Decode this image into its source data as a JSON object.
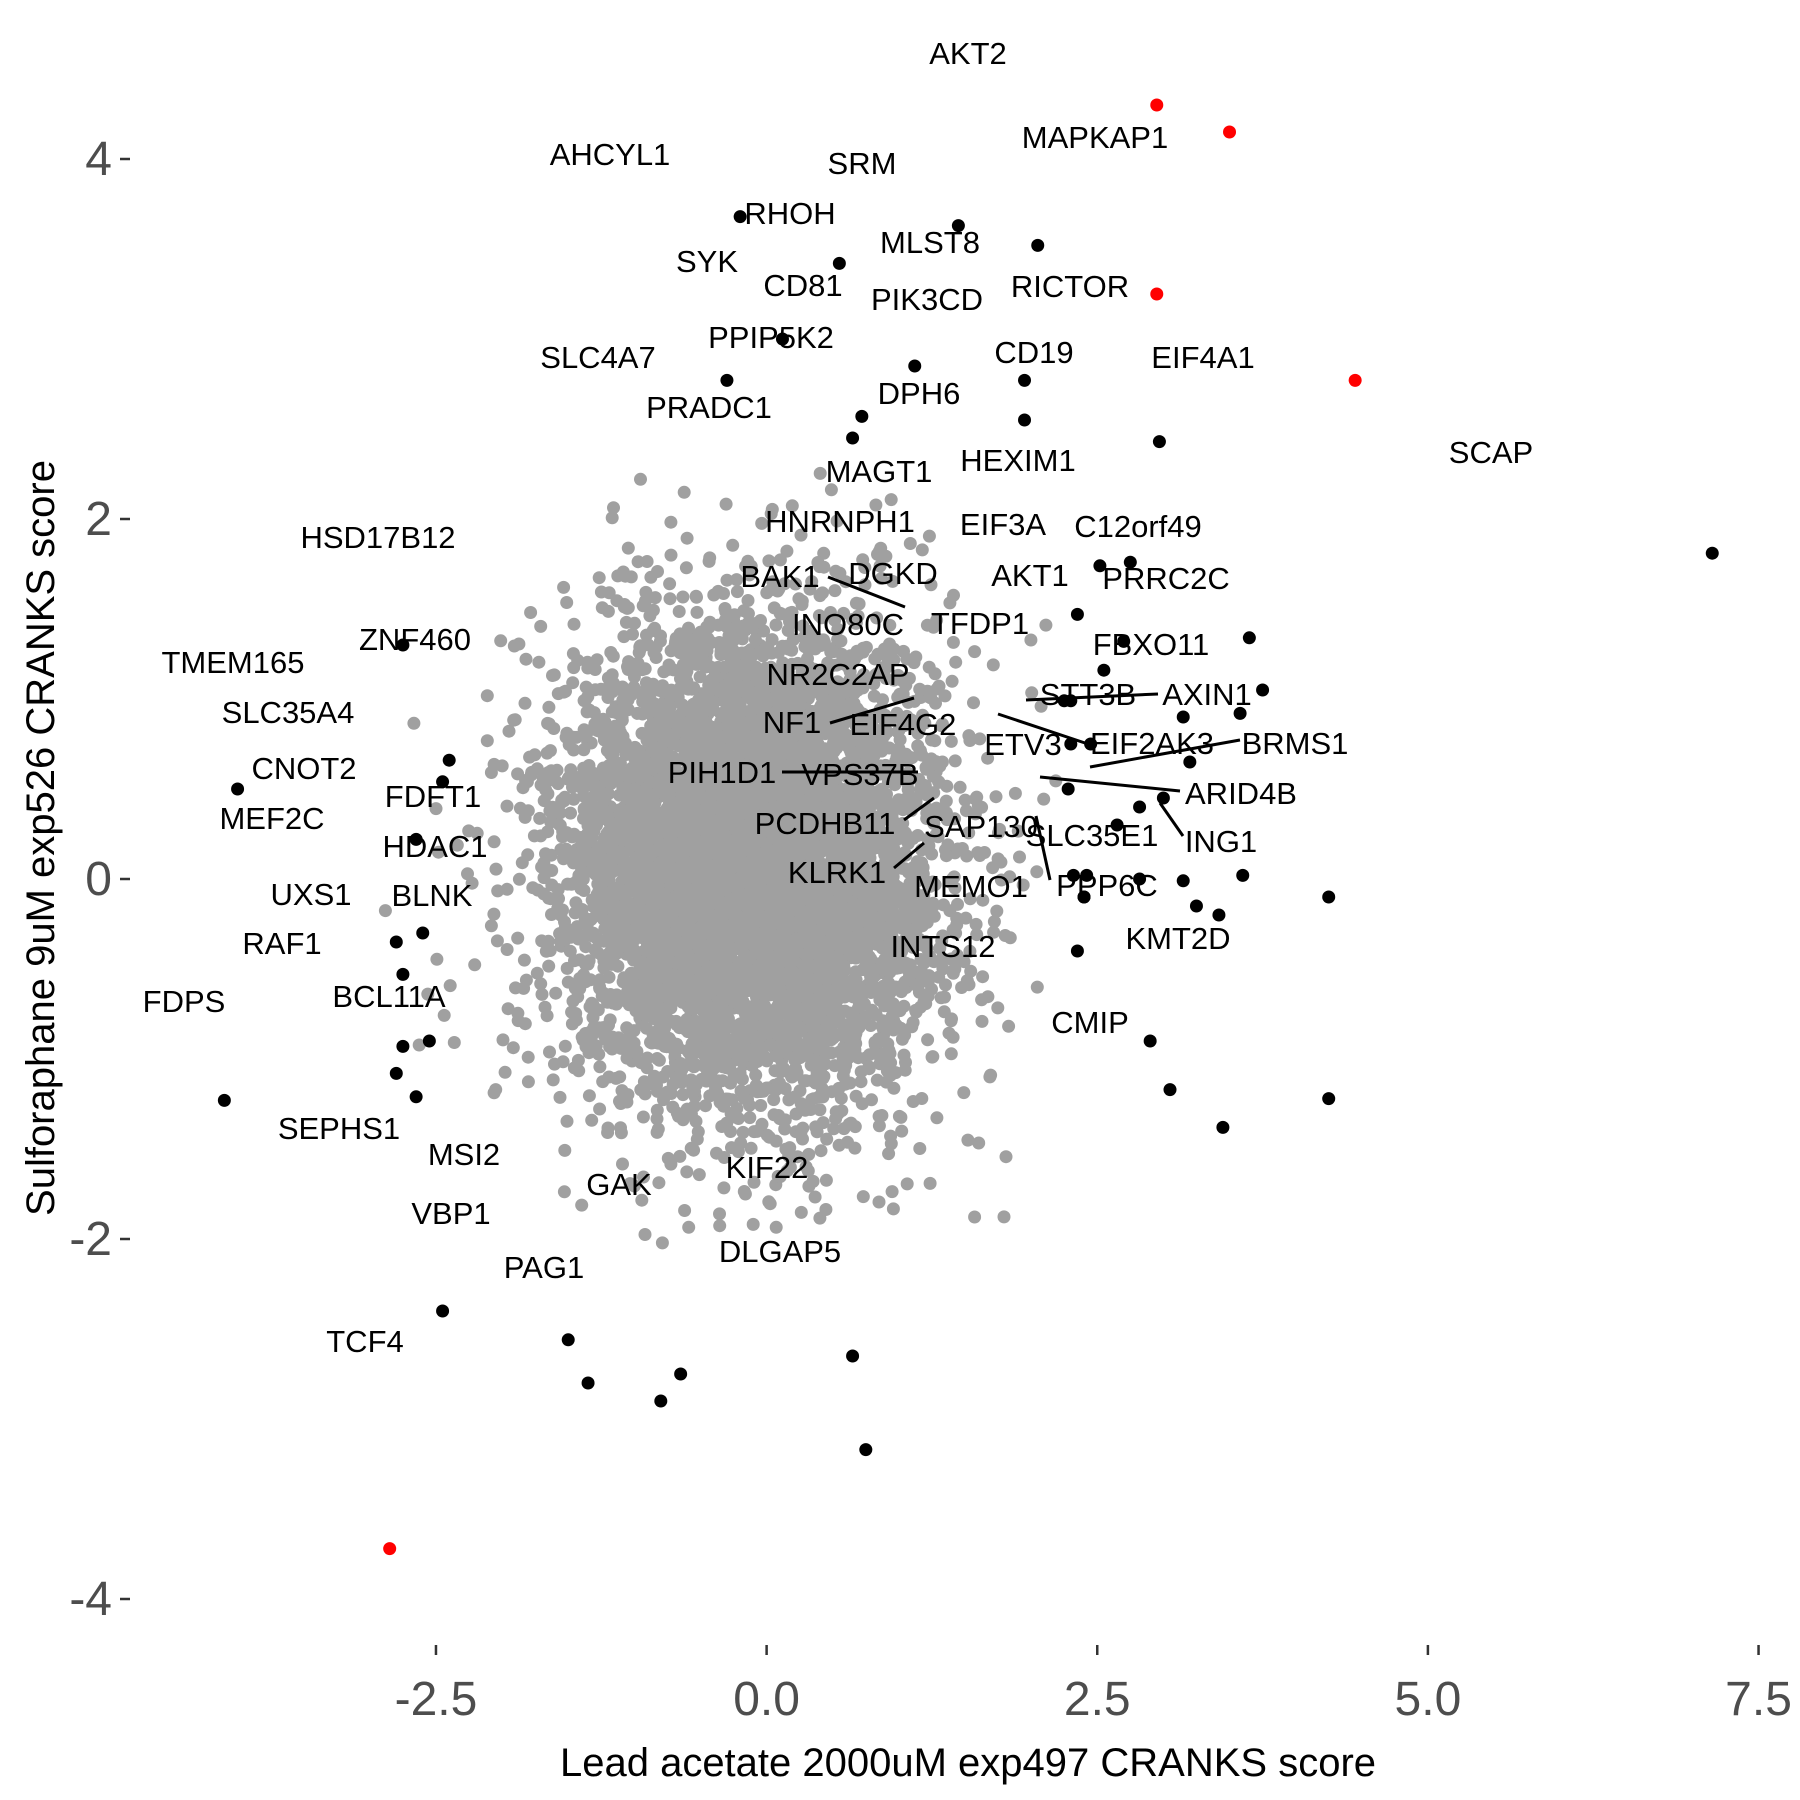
{
  "chart_data": {
    "type": "scatter",
    "xlabel": "Lead acetate 2000uM exp497 CRANKS score",
    "ylabel": "Sulforaphane 9uM exp526 CRANKS score",
    "xlim": [
      -4.7,
      7.7
    ],
    "ylim": [
      -4.2,
      4.55
    ],
    "x_ticks": [
      -2.5,
      0.0,
      2.5,
      5.0,
      7.5
    ],
    "x_tick_labels": [
      "-2.5",
      "0.0",
      "2.5",
      "5.0",
      "7.5"
    ],
    "y_ticks": [
      -4,
      -2,
      0,
      2,
      4
    ],
    "y_tick_labels": [
      "-4",
      "-2",
      "0",
      "2",
      "4"
    ],
    "grid": false,
    "colors": {
      "background_points": "#a0a0a0",
      "highlight_red": "#ff0000",
      "highlight_black": "#000000"
    },
    "background_cloud": {
      "approx_count": 7000,
      "x_mean": -0.1,
      "y_mean": 0.1,
      "x_sd": 0.7,
      "y_sd": 0.65
    },
    "points": [
      {
        "label": "AKT2",
        "x": 2.95,
        "y": 4.3,
        "color": "red"
      },
      {
        "label": "MAPKAP1",
        "x": 3.5,
        "y": 4.15,
        "color": "red"
      },
      {
        "label": "RICTOR",
        "x": 2.95,
        "y": 3.25,
        "color": "red"
      },
      {
        "label": "EIF4A1",
        "x": 4.45,
        "y": 2.77,
        "color": "red"
      },
      {
        "label": "TCF4",
        "x": -2.85,
        "y": -3.72,
        "color": "red"
      },
      {
        "label": "AHCYL1",
        "x": -0.2,
        "y": 3.68,
        "color": "black"
      },
      {
        "label": "SRM",
        "x": 1.45,
        "y": 3.63,
        "color": "black"
      },
      {
        "label": "RHOH",
        "x": 0.55,
        "y": 3.42,
        "color": "black"
      },
      {
        "label": "MLST8",
        "x": 2.05,
        "y": 3.52,
        "color": "black"
      },
      {
        "label": "SYK",
        "x": 0.12,
        "y": 3.0,
        "color": "black"
      },
      {
        "label": "CD81",
        "x": 1.12,
        "y": 2.85,
        "color": "black"
      },
      {
        "label": "PIK3CD",
        "x": 1.95,
        "y": 2.77,
        "color": "black"
      },
      {
        "label": "SLC4A7",
        "x": -0.3,
        "y": 2.77,
        "color": "black"
      },
      {
        "label": "PPIP5K2",
        "x": 0.72,
        "y": 2.57,
        "color": "black"
      },
      {
        "label": "DPH6",
        "x": 1.95,
        "y": 2.55,
        "color": "black"
      },
      {
        "label": "CD19",
        "x": 2.97,
        "y": 2.43,
        "color": "black"
      },
      {
        "label": "PRADC1",
        "x": 0.65,
        "y": 2.45,
        "color": "black"
      },
      {
        "label": "SCAP",
        "x": 7.15,
        "y": 1.81,
        "color": "black"
      },
      {
        "label": "HEXIM1",
        "x": 2.75,
        "y": 1.76,
        "color": "black"
      },
      {
        "label": "MAGT1",
        "x": 2.52,
        "y": 1.74,
        "color": "black"
      },
      {
        "label": "HNRNPH1",
        "x": 2.35,
        "y": 1.47,
        "color": "black"
      },
      {
        "label": "EIF3A",
        "x": 2.7,
        "y": 1.32,
        "color": "black"
      },
      {
        "label": "C12orf49",
        "x": 3.65,
        "y": 1.34,
        "color": "black"
      },
      {
        "label": "HSD17B12",
        "x": -2.75,
        "y": 1.3,
        "color": "black"
      },
      {
        "label": "AKT1",
        "x": 2.55,
        "y": 1.16,
        "color": "black"
      },
      {
        "label": "PRRC2C",
        "x": 3.75,
        "y": 1.05,
        "color": "black"
      },
      {
        "label": "BAK1",
        "x": 2.25,
        "y": 0.99,
        "color": "black"
      },
      {
        "label": "DGKD",
        "x": 2.3,
        "y": 0.99,
        "color": "black"
      },
      {
        "label": "TFDP1",
        "x": 3.15,
        "y": 0.9,
        "color": "black"
      },
      {
        "label": "FBXO11",
        "x": 3.58,
        "y": 0.92,
        "color": "black"
      },
      {
        "label": "INO80C",
        "x": 2.3,
        "y": 0.75,
        "color": "black"
      },
      {
        "label": "ZNF460",
        "x": -2.4,
        "y": 0.66,
        "color": "black"
      },
      {
        "label": "NR2C2AP",
        "x": 2.45,
        "y": 0.75,
        "color": "black"
      },
      {
        "label": "TMEM165",
        "x": -4.0,
        "y": 0.5,
        "color": "black"
      },
      {
        "label": "SLC35A4",
        "x": -2.45,
        "y": 0.54,
        "color": "black"
      },
      {
        "label": "NF1",
        "x": 2.28,
        "y": 0.5,
        "color": "black"
      },
      {
        "label": "STT3B",
        "x": 3.2,
        "y": 0.65,
        "color": "black"
      },
      {
        "label": "AXIN1",
        "x": 3.0,
        "y": 0.45,
        "color": "black"
      },
      {
        "label": "EIF4G2",
        "x": 2.82,
        "y": 0.4,
        "color": "black"
      },
      {
        "label": "EIF2AK3",
        "x": 2.65,
        "y": 0.3,
        "color": "black"
      },
      {
        "label": "CNOT2",
        "x": -2.65,
        "y": 0.22,
        "color": "black"
      },
      {
        "label": "ETV3",
        "x": 2.82,
        "y": 0.0,
        "color": "black"
      },
      {
        "label": "BRMS1",
        "x": 3.6,
        "y": 0.02,
        "color": "black"
      },
      {
        "label": "PIH1D1",
        "x": 2.42,
        "y": 0.02,
        "color": "black"
      },
      {
        "label": "VPS37B",
        "x": 2.32,
        "y": 0.02,
        "color": "black"
      },
      {
        "label": "ARID4B",
        "x": 3.15,
        "y": -0.01,
        "color": "black"
      },
      {
        "label": "ING1",
        "x": 4.25,
        "y": -0.1,
        "color": "black"
      },
      {
        "label": "FDFT1",
        "x": -2.6,
        "y": -0.3,
        "color": "black"
      },
      {
        "label": "MEF2C",
        "x": -2.8,
        "y": -0.35,
        "color": "black"
      },
      {
        "label": "PCDHB11",
        "x": 2.4,
        "y": -0.1,
        "color": "black"
      },
      {
        "label": "SLC35E1",
        "x": 3.42,
        "y": -0.2,
        "color": "black"
      },
      {
        "label": "SAP130",
        "x": 2.35,
        "y": -0.4,
        "color": "black"
      },
      {
        "label": "PPP6C",
        "x": 3.25,
        "y": -0.15,
        "color": "black"
      },
      {
        "label": "HDAC1",
        "x": -2.75,
        "y": -0.53,
        "color": "black"
      },
      {
        "label": "KLRK1",
        "x": 2.4,
        "y": -0.1,
        "color": "black"
      },
      {
        "label": "BLNK",
        "x": -2.55,
        "y": -0.9,
        "color": "black"
      },
      {
        "label": "UXS1",
        "x": -2.75,
        "y": -0.93,
        "color": "black"
      },
      {
        "label": "MEMO1",
        "x": 2.9,
        "y": -0.9,
        "color": "black"
      },
      {
        "label": "RAF1",
        "x": -2.8,
        "y": -1.08,
        "color": "black"
      },
      {
        "label": "INTS12",
        "x": 3.05,
        "y": -1.17,
        "color": "black"
      },
      {
        "label": "KMT2D",
        "x": 4.25,
        "y": -1.22,
        "color": "black"
      },
      {
        "label": "FDPS",
        "x": -4.1,
        "y": -1.23,
        "color": "black"
      },
      {
        "label": "BCL11A",
        "x": -2.65,
        "y": -1.21,
        "color": "black"
      },
      {
        "label": "CMIP",
        "x": 3.45,
        "y": -1.38,
        "color": "black"
      },
      {
        "label": "SEPHS1",
        "x": -2.45,
        "y": -2.4,
        "color": "black"
      },
      {
        "label": "MSI2",
        "x": -1.5,
        "y": -2.56,
        "color": "black"
      },
      {
        "label": "KIF22",
        "x": 0.65,
        "y": -2.65,
        "color": "black"
      },
      {
        "label": "GAK",
        "x": -0.65,
        "y": -2.75,
        "color": "black"
      },
      {
        "label": "VBP1",
        "x": -1.35,
        "y": -2.8,
        "color": "black"
      },
      {
        "label": "PAG1",
        "x": -0.8,
        "y": -2.9,
        "color": "black"
      },
      {
        "label": "DLGAP5",
        "x": 0.75,
        "y": -3.17,
        "color": "black"
      }
    ]
  }
}
